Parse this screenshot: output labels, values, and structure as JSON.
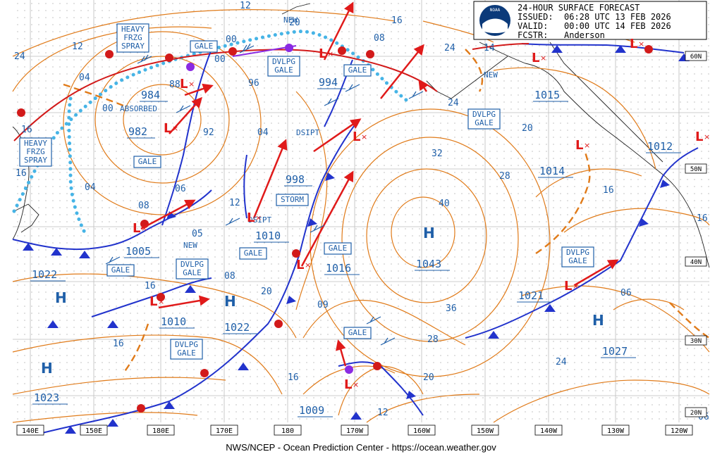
{
  "header": {
    "title": "24-HOUR SURFACE FORECAST",
    "issued_label": "ISSUED:",
    "issued": "06:28 UTC 13 FEB 2026",
    "valid_label": "VALID:",
    "valid": "00:00 UTC 14 FEB 2026",
    "fcstr_label": "FCSTR:",
    "fcstr": "Anderson",
    "logo_text": "NOAA"
  },
  "footer": "NWS/NCEP - Ocean Prediction Center - https://ocean.weather.gov",
  "longitude_labels": [
    "140E",
    "150E",
    "180E",
    "170E",
    "180",
    "170W",
    "160W",
    "150W",
    "140W",
    "130W",
    "120W"
  ],
  "latitude_labels": [
    "60N",
    "50N",
    "40N",
    "30N",
    "20N"
  ],
  "warnings": [
    {
      "text": "HEAVY\nFRZG\nSPRAY"
    },
    {
      "text": "HEAVY\nFRZG\nSPRAY"
    },
    {
      "text": "GALE"
    },
    {
      "text": "DVLPG\nGALE"
    },
    {
      "text": "GALE"
    },
    {
      "text": "GALE"
    },
    {
      "text": "STORM"
    },
    {
      "text": "GALE"
    },
    {
      "text": "DVLPG\nGALE"
    },
    {
      "text": "GALE"
    },
    {
      "text": "GALE"
    },
    {
      "text": "DVLPG\nGALE"
    },
    {
      "text": "DVLPG\nGALE"
    },
    {
      "text": "GALE"
    },
    {
      "text": "DVLPG\nGALE"
    }
  ],
  "pressure_labels": [
    "984",
    "982",
    "994",
    "998",
    "1010",
    "1005",
    "1022",
    "1010",
    "1022",
    "1023",
    "1016",
    "1043",
    "1009",
    "1015",
    "1014",
    "1012",
    "1021",
    "1027"
  ],
  "isobar_labels": [
    "12",
    "20",
    "24",
    "12",
    "04",
    "88",
    "00",
    "96",
    "00",
    "04",
    "08",
    "16",
    "24",
    "16",
    "92",
    "04",
    "24",
    "32",
    "28",
    "20",
    "16",
    "16",
    "40",
    "36",
    "28",
    "24",
    "20",
    "16",
    "12",
    "16",
    "06",
    "05",
    "08",
    "09",
    "06",
    "12",
    "20",
    "16",
    "16",
    "00",
    "08",
    "14",
    "06"
  ],
  "text_annotations": [
    "NEW",
    "NEW",
    "NEW",
    "ABSORBED",
    "DSIPT",
    "DSIPT"
  ],
  "high_marker": "H",
  "low_marker": "L"
}
